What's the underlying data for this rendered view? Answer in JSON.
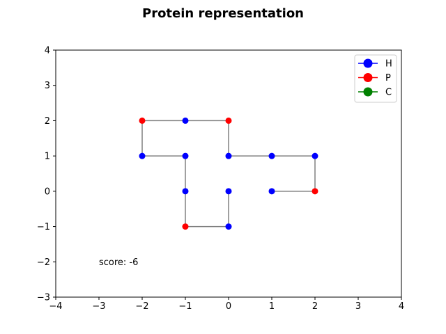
{
  "chart_data": {
    "type": "scatter",
    "title": "Protein representation",
    "xlim": [
      -4,
      4
    ],
    "ylim": [
      -3,
      4
    ],
    "x_ticks": [
      -4,
      -3,
      -2,
      -1,
      0,
      1,
      2,
      3,
      4
    ],
    "y_ticks": [
      -3,
      -2,
      -1,
      0,
      1,
      2,
      3,
      4
    ],
    "x_tick_labels": [
      "−4",
      "−3",
      "−2",
      "−1",
      "0",
      "1",
      "2",
      "3",
      "4"
    ],
    "y_tick_labels": [
      "−3",
      "−2",
      "−1",
      "0",
      "1",
      "2",
      "3",
      "4"
    ],
    "grid": false,
    "legend_position": "top-right",
    "legend": [
      {
        "label": "H",
        "color": "#0000ff"
      },
      {
        "label": "P",
        "color": "#ff0000"
      },
      {
        "label": "C",
        "color": "#008000"
      }
    ],
    "chain_color": "#808080",
    "chain": [
      {
        "x": 1,
        "y": 0,
        "type": "H"
      },
      {
        "x": 2,
        "y": 0,
        "type": "P"
      },
      {
        "x": 2,
        "y": 1,
        "type": "H"
      },
      {
        "x": 1,
        "y": 1,
        "type": "H"
      },
      {
        "x": 0,
        "y": 1,
        "type": "H"
      },
      {
        "x": 0,
        "y": 2,
        "type": "P"
      },
      {
        "x": -1,
        "y": 2,
        "type": "H"
      },
      {
        "x": -2,
        "y": 2,
        "type": "P"
      },
      {
        "x": -2,
        "y": 1,
        "type": "H"
      },
      {
        "x": -1,
        "y": 1,
        "type": "H"
      },
      {
        "x": -1,
        "y": 0,
        "type": "H"
      },
      {
        "x": -1,
        "y": -1,
        "type": "P"
      },
      {
        "x": 0,
        "y": -1,
        "type": "H"
      },
      {
        "x": 0,
        "y": 0,
        "type": "H"
      }
    ],
    "annotation": {
      "text": "score: -6",
      "x": -3,
      "y": -2
    }
  }
}
